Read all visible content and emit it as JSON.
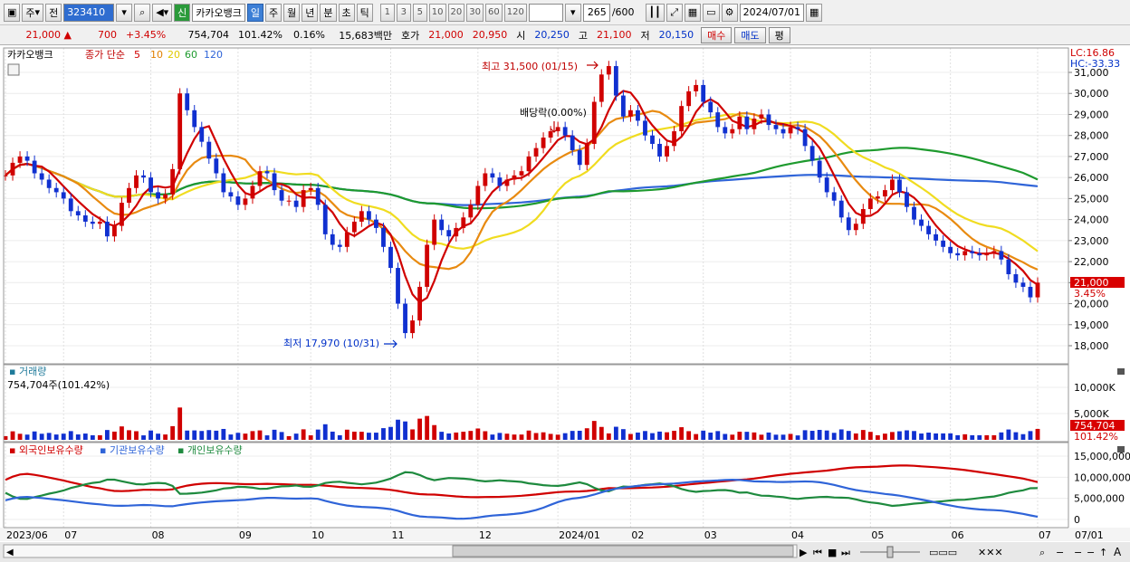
{
  "toolbar": {
    "market_label": "주",
    "prev_label": "전",
    "code_value": "323410",
    "stock_name": "카카오뱅크",
    "new_badge": "신",
    "periods": [
      "일",
      "주",
      "월",
      "년",
      "분",
      "초",
      "틱"
    ],
    "active_period": "일",
    "intervals": [
      "1",
      "3",
      "5",
      "10",
      "20",
      "30",
      "60",
      "120"
    ],
    "count_value": "265",
    "count_total": "/600",
    "date_value": "2024/07/01"
  },
  "quote": {
    "price": "21,000",
    "change": "700",
    "change_pct": "+3.45%",
    "volume": "754,704",
    "volume_ratio": "101.42%",
    "turnover": "0.16%",
    "amount": "15,683백만",
    "ask_label": "호가",
    "ask": "21,000",
    "bid": "20,950",
    "open_label": "시",
    "open": "20,250",
    "high_label": "고",
    "high": "21,100",
    "low_label": "저",
    "low": "20,150",
    "buy_label": "매수",
    "sell_label": "매도",
    "eval_label": "평"
  },
  "chart_data": [
    {
      "type": "candlestick",
      "title": "카카오뱅크",
      "legend": [
        "종가 단순",
        "5",
        "10",
        "20",
        "60",
        "120"
      ],
      "ylim": [
        17000,
        31700
      ],
      "yticks": [
        18000,
        19000,
        20000,
        21000,
        22000,
        23000,
        24000,
        25000,
        26000,
        27000,
        28000,
        29000,
        30000,
        31000
      ],
      "x_labels": [
        "2023/06",
        "07",
        "08",
        "09",
        "10",
        "11",
        "12",
        "2024/01",
        "02",
        "03",
        "04",
        "05",
        "06",
        "07",
        "07/01"
      ],
      "annotations": {
        "high": "최고 31,500 (01/15)",
        "low": "최저 17,970 (10/31)",
        "dividend": "배당락(0.00%)",
        "lc": "LC:16.86",
        "hc": "HC:-33.33",
        "last_price": "21,000",
        "last_pct": "3.45%"
      },
      "close": [
        26100,
        26700,
        27000,
        26800,
        26200,
        25900,
        25500,
        25300,
        25000,
        24400,
        24200,
        23900,
        23800,
        23900,
        23200,
        23700,
        24800,
        25500,
        26100,
        26000,
        25300,
        25000,
        25200,
        26400,
        30000,
        29200,
        28400,
        27700,
        26900,
        26200,
        25300,
        25100,
        24700,
        25000,
        25600,
        26300,
        26200,
        25400,
        24900,
        24900,
        24600,
        25400,
        25500,
        24700,
        23300,
        22800,
        22700,
        23400,
        23900,
        24400,
        24000,
        23600,
        22700,
        21700,
        20000,
        18600,
        19200,
        20800,
        22800,
        24000,
        23500,
        23200,
        23600,
        24100,
        24700,
        25600,
        26200,
        26000,
        25600,
        25900,
        26100,
        26300,
        27000,
        27400,
        27900,
        28200,
        28400,
        28000,
        27300,
        26600,
        27600,
        29600,
        30900,
        31300,
        29900,
        28900,
        29200,
        28700,
        28000,
        27600,
        27000,
        27500,
        28200,
        29400,
        30100,
        30400,
        29600,
        29100,
        28400,
        28100,
        28300,
        28900,
        28300,
        28800,
        29000,
        28500,
        28300,
        28100,
        28400,
        28300,
        27500,
        26800,
        26000,
        25300,
        24900,
        24100,
        23500,
        23800,
        24500,
        25000,
        25100,
        25400,
        25900,
        25300,
        24600,
        24000,
        23700,
        23300,
        23000,
        22700,
        22400,
        22300,
        22500,
        22400,
        22300,
        22400,
        22500,
        22100,
        21400,
        21000,
        20800,
        20300,
        21000
      ]
    },
    {
      "type": "bar",
      "title": "거래량",
      "info": "754,704주(101.42%)",
      "yticks": [
        5000000,
        10000000
      ],
      "ytick_labels": [
        "5,000K",
        "10,000K"
      ],
      "last_volume": "754,704",
      "last_ratio": "101.42%"
    },
    {
      "type": "line",
      "series_names": [
        "외국인보유수량",
        "기관보유수량",
        "개인보유수량"
      ],
      "yticks": [
        0,
        5000000,
        10000000,
        15000000
      ],
      "ytick_labels": [
        "0",
        "5,000,000",
        "10,000,000",
        "15,000,000"
      ]
    }
  ]
}
